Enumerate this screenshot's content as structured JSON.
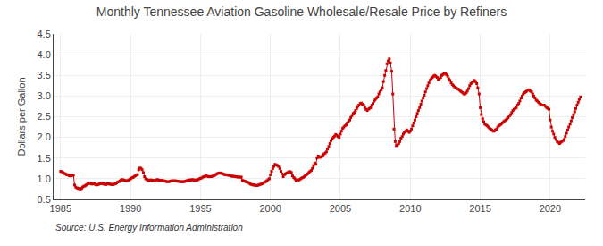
{
  "chart_data": {
    "type": "line",
    "title": "Monthly Tennessee Aviation Gasoline Wholesale/Resale Price by Refiners",
    "ylabel": "Dollars per Gallon",
    "annotations": [
      "Source: U.S. Energy Information Administration"
    ],
    "color": "#cc0000",
    "marker": "square",
    "line_style": "solid",
    "grid": true,
    "xlim": [
      1984.5,
      2022.5
    ],
    "xticks": [
      1985,
      1990,
      1995,
      2000,
      2005,
      2010,
      2015,
      2020
    ],
    "ylim": [
      0.5,
      4.5
    ],
    "yticks": [
      0.5,
      {
        "value": 1.0,
        "label": "1.0"
      },
      1.5,
      {
        "value": 2.0,
        "label": "2.0"
      },
      2.5,
      {
        "value": 3.0,
        "label": "3.0"
      },
      3.5,
      {
        "value": 4.0,
        "label": "4.0"
      },
      4.5
    ],
    "x": [
      1985.0,
      1985.08,
      1985.17,
      1985.25,
      1985.33,
      1985.42,
      1985.5,
      1985.58,
      1985.67,
      1985.75,
      1985.83,
      1985.92,
      1986.0,
      1986.08,
      1986.17,
      1986.25,
      1986.33,
      1986.42,
      1986.5,
      1986.58,
      1986.67,
      1986.75,
      1986.83,
      1986.92,
      1987.0,
      1987.08,
      1987.17,
      1987.25,
      1987.33,
      1987.42,
      1987.5,
      1987.58,
      1987.67,
      1987.75,
      1987.83,
      1987.92,
      1988.0,
      1988.08,
      1988.17,
      1988.25,
      1988.33,
      1988.42,
      1988.5,
      1988.58,
      1988.67,
      1988.75,
      1988.83,
      1988.92,
      1989.0,
      1989.08,
      1989.17,
      1989.25,
      1989.33,
      1989.42,
      1989.5,
      1989.58,
      1989.67,
      1989.75,
      1989.83,
      1989.92,
      1990.0,
      1990.08,
      1990.17,
      1990.25,
      1990.33,
      1990.42,
      1990.5,
      1990.58,
      1990.67,
      1990.75,
      1990.83,
      1990.92,
      1991.0,
      1991.08,
      1991.17,
      1991.25,
      1991.33,
      1991.42,
      1991.5,
      1991.58,
      1991.67,
      1991.75,
      1991.83,
      1991.92,
      1992.0,
      1992.08,
      1992.17,
      1992.25,
      1992.33,
      1992.42,
      1992.5,
      1992.58,
      1992.67,
      1992.75,
      1992.83,
      1992.92,
      1993.0,
      1993.08,
      1993.17,
      1993.25,
      1993.33,
      1993.42,
      1993.5,
      1993.58,
      1993.67,
      1993.75,
      1993.83,
      1993.92,
      1994.0,
      1994.08,
      1994.17,
      1994.25,
      1994.33,
      1994.42,
      1994.5,
      1994.58,
      1994.67,
      1994.75,
      1994.83,
      1994.92,
      1995.0,
      1995.08,
      1995.17,
      1995.25,
      1995.33,
      1995.42,
      1995.5,
      1995.58,
      1995.67,
      1995.75,
      1995.83,
      1995.92,
      1996.0,
      1996.08,
      1996.17,
      1996.25,
      1996.33,
      1996.42,
      1996.5,
      1996.58,
      1996.67,
      1996.75,
      1996.83,
      1996.92,
      1997.0,
      1997.08,
      1997.17,
      1997.25,
      1997.33,
      1997.42,
      1997.5,
      1997.58,
      1997.67,
      1997.75,
      1997.83,
      1997.92,
      1998.0,
      1998.08,
      1998.17,
      1998.25,
      1998.33,
      1998.42,
      1998.5,
      1998.58,
      1998.67,
      1998.75,
      1998.83,
      1998.92,
      1999.0,
      1999.08,
      1999.17,
      1999.25,
      1999.33,
      1999.42,
      1999.5,
      1999.58,
      1999.67,
      1999.75,
      1999.83,
      1999.92,
      2000.0,
      2000.08,
      2000.17,
      2000.25,
      2000.33,
      2000.42,
      2000.5,
      2000.58,
      2000.67,
      2000.75,
      2000.83,
      2000.92,
      2001.0,
      2001.08,
      2001.17,
      2001.25,
      2001.33,
      2001.42,
      2001.5,
      2001.58,
      2001.67,
      2001.75,
      2001.83,
      2001.92,
      2002.0,
      2002.08,
      2002.17,
      2002.25,
      2002.33,
      2002.42,
      2002.5,
      2002.58,
      2002.67,
      2002.75,
      2002.83,
      2002.92,
      2003.0,
      2003.08,
      2003.17,
      2003.25,
      2003.33,
      2003.42,
      2003.5,
      2003.58,
      2003.67,
      2003.75,
      2003.83,
      2003.92,
      2004.0,
      2004.08,
      2004.17,
      2004.25,
      2004.33,
      2004.42,
      2004.5,
      2004.58,
      2004.67,
      2004.75,
      2004.83,
      2004.92,
      2005.0,
      2005.08,
      2005.17,
      2005.25,
      2005.33,
      2005.42,
      2005.5,
      2005.58,
      2005.67,
      2005.75,
      2005.83,
      2005.92,
      2006.0,
      2006.08,
      2006.17,
      2006.25,
      2006.33,
      2006.42,
      2006.5,
      2006.58,
      2006.67,
      2006.75,
      2006.83,
      2006.92,
      2007.0,
      2007.08,
      2007.17,
      2007.25,
      2007.33,
      2007.42,
      2007.5,
      2007.58,
      2007.67,
      2007.75,
      2007.83,
      2007.92,
      2008.0,
      2008.08,
      2008.17,
      2008.25,
      2008.33,
      2008.42,
      2008.5,
      2008.58,
      2008.67,
      2008.75,
      2008.83,
      2008.92,
      2009.0,
      2009.08,
      2009.17,
      2009.25,
      2009.33,
      2009.42,
      2009.5,
      2009.58,
      2009.67,
      2009.75,
      2009.83,
      2009.92,
      2010.0,
      2010.08,
      2010.17,
      2010.25,
      2010.33,
      2010.42,
      2010.5,
      2010.58,
      2010.67,
      2010.75,
      2010.83,
      2010.92,
      2011.0,
      2011.08,
      2011.17,
      2011.25,
      2011.33,
      2011.42,
      2011.5,
      2011.58,
      2011.67,
      2011.75,
      2011.83,
      2011.92,
      2012.0,
      2012.08,
      2012.17,
      2012.25,
      2012.33,
      2012.42,
      2012.5,
      2012.58,
      2012.67,
      2012.75,
      2012.83,
      2012.92,
      2013.0,
      2013.08,
      2013.17,
      2013.25,
      2013.33,
      2013.42,
      2013.5,
      2013.58,
      2013.67,
      2013.75,
      2013.83,
      2013.92,
      2014.0,
      2014.08,
      2014.17,
      2014.25,
      2014.33,
      2014.42,
      2014.5,
      2014.58,
      2014.67,
      2014.75,
      2014.83,
      2014.92,
      2015.0,
      2015.08,
      2015.17,
      2015.25,
      2015.33,
      2015.42,
      2015.5,
      2015.58,
      2015.67,
      2015.75,
      2015.83,
      2015.92,
      2016.0,
      2016.08,
      2016.17,
      2016.25,
      2016.33,
      2016.42,
      2016.5,
      2016.58,
      2016.67,
      2016.75,
      2016.83,
      2016.92,
      2017.0,
      2017.08,
      2017.17,
      2017.25,
      2017.33,
      2017.42,
      2017.5,
      2017.58,
      2017.67,
      2017.75,
      2017.83,
      2017.92,
      2018.0,
      2018.08,
      2018.17,
      2018.25,
      2018.33,
      2018.42,
      2018.5,
      2018.58,
      2018.67,
      2018.75,
      2018.83,
      2018.92,
      2019.0,
      2019.08,
      2019.17,
      2019.25,
      2019.33,
      2019.42,
      2019.5,
      2019.58,
      2019.67,
      2019.75,
      2019.83,
      2019.92,
      2020.0,
      2020.08,
      2020.17,
      2020.25,
      2020.33,
      2020.42,
      2020.5,
      2020.58,
      2020.67,
      2020.75,
      2020.83,
      2020.92,
      2021.0,
      2021.08,
      2021.17,
      2021.25,
      2021.33,
      2021.42,
      2021.5,
      2021.58,
      2021.67,
      2021.75,
      2021.83,
      2021.92,
      2022.0,
      2022.08,
      2022.17
    ],
    "values": [
      1.18,
      1.17,
      1.15,
      1.13,
      1.12,
      1.1,
      1.1,
      1.08,
      1.07,
      1.07,
      1.08,
      1.09,
      0.85,
      0.8,
      0.78,
      0.77,
      0.76,
      0.75,
      0.77,
      0.8,
      0.82,
      0.83,
      0.85,
      0.87,
      0.88,
      0.9,
      0.88,
      0.87,
      0.88,
      0.88,
      0.86,
      0.85,
      0.86,
      0.87,
      0.88,
      0.9,
      0.88,
      0.87,
      0.87,
      0.86,
      0.88,
      0.88,
      0.87,
      0.87,
      0.86,
      0.86,
      0.87,
      0.88,
      0.9,
      0.92,
      0.93,
      0.95,
      0.97,
      0.98,
      0.97,
      0.96,
      0.95,
      0.95,
      0.96,
      0.98,
      1.0,
      1.02,
      1.03,
      1.05,
      1.07,
      1.09,
      1.1,
      1.22,
      1.26,
      1.25,
      1.22,
      1.15,
      1.05,
      1.0,
      0.98,
      0.97,
      0.96,
      0.97,
      0.97,
      0.96,
      0.96,
      0.95,
      0.97,
      0.98,
      0.97,
      0.96,
      0.96,
      0.96,
      0.95,
      0.95,
      0.94,
      0.93,
      0.93,
      0.93,
      0.94,
      0.95,
      0.95,
      0.95,
      0.95,
      0.95,
      0.94,
      0.94,
      0.93,
      0.93,
      0.93,
      0.93,
      0.93,
      0.94,
      0.95,
      0.96,
      0.97,
      0.97,
      0.97,
      0.98,
      0.97,
      0.97,
      0.97,
      0.97,
      0.98,
      1.0,
      1.01,
      1.02,
      1.04,
      1.05,
      1.06,
      1.07,
      1.06,
      1.05,
      1.05,
      1.05,
      1.06,
      1.07,
      1.08,
      1.1,
      1.12,
      1.13,
      1.14,
      1.14,
      1.13,
      1.12,
      1.11,
      1.1,
      1.1,
      1.09,
      1.09,
      1.08,
      1.07,
      1.06,
      1.06,
      1.06,
      1.05,
      1.05,
      1.04,
      1.04,
      1.04,
      1.04,
      0.96,
      0.95,
      0.94,
      0.93,
      0.92,
      0.91,
      0.89,
      0.87,
      0.86,
      0.85,
      0.85,
      0.84,
      0.84,
      0.84,
      0.85,
      0.86,
      0.87,
      0.88,
      0.9,
      0.92,
      0.93,
      0.95,
      0.98,
      1.0,
      1.1,
      1.18,
      1.25,
      1.3,
      1.35,
      1.33,
      1.32,
      1.3,
      1.25,
      1.18,
      1.12,
      1.05,
      1.1,
      1.12,
      1.14,
      1.15,
      1.17,
      1.17,
      1.15,
      1.07,
      1.03,
      1.0,
      0.95,
      0.97,
      0.97,
      0.98,
      1.0,
      1.02,
      1.03,
      1.05,
      1.08,
      1.1,
      1.12,
      1.15,
      1.18,
      1.2,
      1.25,
      1.32,
      1.38,
      1.35,
      1.5,
      1.55,
      1.52,
      1.52,
      1.54,
      1.57,
      1.6,
      1.62,
      1.65,
      1.72,
      1.78,
      1.85,
      1.92,
      1.97,
      2.0,
      2.03,
      2.07,
      2.05,
      2.02,
      2.0,
      2.08,
      2.15,
      2.22,
      2.25,
      2.28,
      2.3,
      2.35,
      2.38,
      2.42,
      2.48,
      2.53,
      2.58,
      2.6,
      2.65,
      2.7,
      2.75,
      2.78,
      2.82,
      2.83,
      2.8,
      2.78,
      2.72,
      2.68,
      2.65,
      2.68,
      2.7,
      2.72,
      2.78,
      2.82,
      2.88,
      2.92,
      2.95,
      2.98,
      3.05,
      3.1,
      3.15,
      3.2,
      3.35,
      3.5,
      3.62,
      3.78,
      3.85,
      3.9,
      3.8,
      3.6,
      3.05,
      2.2,
      1.9,
      1.8,
      1.82,
      1.85,
      1.9,
      1.98,
      2.02,
      2.08,
      2.12,
      2.15,
      2.18,
      2.15,
      2.12,
      2.15,
      2.2,
      2.28,
      2.35,
      2.42,
      2.5,
      2.58,
      2.65,
      2.72,
      2.8,
      2.88,
      2.95,
      3.02,
      3.1,
      3.18,
      3.25,
      3.32,
      3.38,
      3.42,
      3.45,
      3.48,
      3.5,
      3.48,
      3.45,
      3.4,
      3.42,
      3.45,
      3.5,
      3.52,
      3.55,
      3.55,
      3.52,
      3.48,
      3.42,
      3.38,
      3.32,
      3.28,
      3.25,
      3.22,
      3.2,
      3.18,
      3.17,
      3.15,
      3.12,
      3.1,
      3.08,
      3.05,
      3.05,
      3.08,
      3.12,
      3.18,
      3.25,
      3.3,
      3.32,
      3.35,
      3.38,
      3.35,
      3.3,
      3.2,
      3.05,
      2.72,
      2.55,
      2.45,
      2.38,
      2.32,
      2.3,
      2.28,
      2.25,
      2.22,
      2.2,
      2.18,
      2.15,
      2.15,
      2.18,
      2.2,
      2.25,
      2.28,
      2.3,
      2.32,
      2.35,
      2.38,
      2.4,
      2.42,
      2.45,
      2.48,
      2.52,
      2.55,
      2.6,
      2.65,
      2.68,
      2.7,
      2.72,
      2.78,
      2.82,
      2.88,
      2.95,
      3.0,
      3.05,
      3.08,
      3.1,
      3.12,
      3.15,
      3.15,
      3.12,
      3.1,
      3.05,
      3.0,
      2.95,
      2.9,
      2.88,
      2.85,
      2.82,
      2.8,
      2.78,
      2.78,
      2.78,
      2.75,
      2.72,
      2.7,
      2.68,
      2.42,
      2.25,
      2.15,
      2.08,
      2.0,
      1.95,
      1.9,
      1.88,
      1.85,
      1.88,
      1.9,
      1.92,
      1.95,
      2.02,
      2.1,
      2.18,
      2.25,
      2.32,
      2.4,
      2.48,
      2.55,
      2.62,
      2.7,
      2.78,
      2.85,
      2.92,
      2.98
    ]
  }
}
